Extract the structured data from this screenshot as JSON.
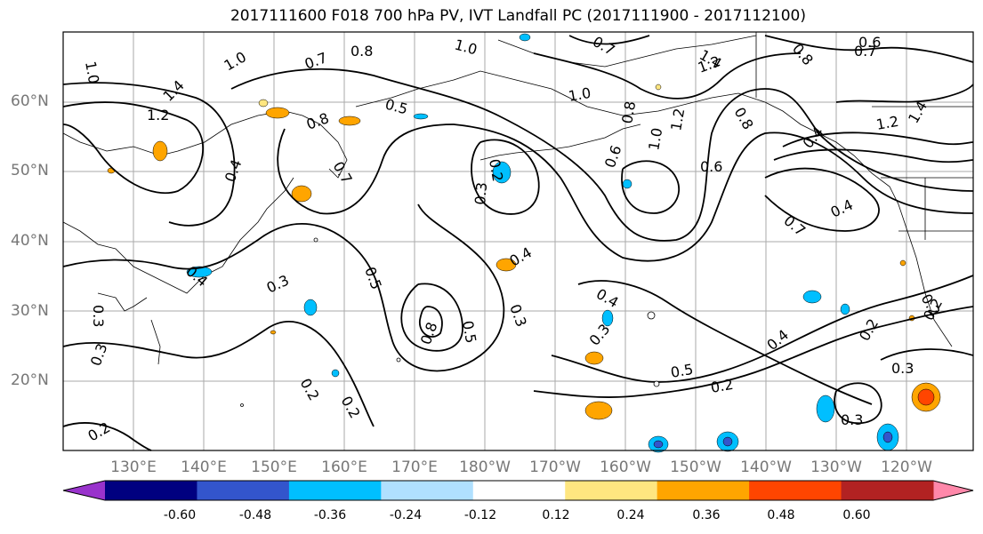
{
  "title": "2017111600 F018 700 hPa PV, IVT Landfall PC (2017111900 - 2017112100)",
  "lat_labels": [
    "60°N",
    "50°N",
    "40°N",
    "30°N",
    "20°N"
  ],
  "lon_labels": [
    "130°E",
    "140°E",
    "150°E",
    "160°E",
    "170°E",
    "180°W",
    "170°W",
    "160°W",
    "150°W",
    "140°W",
    "130°W",
    "120°W"
  ],
  "colorbar": {
    "colors": [
      "#9933cc",
      "#000080",
      "#3355cc",
      "#00bfff",
      "#b0e0ff",
      "#ffffff",
      "#ffe680",
      "#ffa500",
      "#ff4500",
      "#b22222",
      "#ff88aa"
    ],
    "tick_labels": [
      "-0.60",
      "-0.48",
      "-0.36",
      "-0.24",
      "-0.12",
      "0.12",
      "0.24",
      "0.36",
      "0.48",
      "0.60"
    ]
  },
  "contour_labels": [
    "1.0",
    "1.0",
    "0.8",
    "1.0",
    "0.7",
    "0.8",
    "0.6",
    "0.7",
    "1.4",
    "1.2",
    "1.4",
    "1.2",
    "0.7",
    "0.5",
    "0.8",
    "0.7",
    "0.4",
    "0.3",
    "0.2",
    "1.0",
    "0.6",
    "0.8",
    "1.2",
    "0.8",
    "0.6",
    "1.0",
    "0.4",
    "0.7",
    "0.4",
    "1.2",
    "1.4",
    "0.3",
    "0.5",
    "0.3",
    "0.4",
    "0.4",
    "0.8",
    "0.5",
    "0.3",
    "0.4",
    "0.3",
    "0.2",
    "0.3",
    "0.5",
    "0.2",
    "0.4",
    "0.2",
    "0.3",
    "0.2",
    "0.2",
    "0.3",
    "0.2",
    "0.2"
  ]
}
